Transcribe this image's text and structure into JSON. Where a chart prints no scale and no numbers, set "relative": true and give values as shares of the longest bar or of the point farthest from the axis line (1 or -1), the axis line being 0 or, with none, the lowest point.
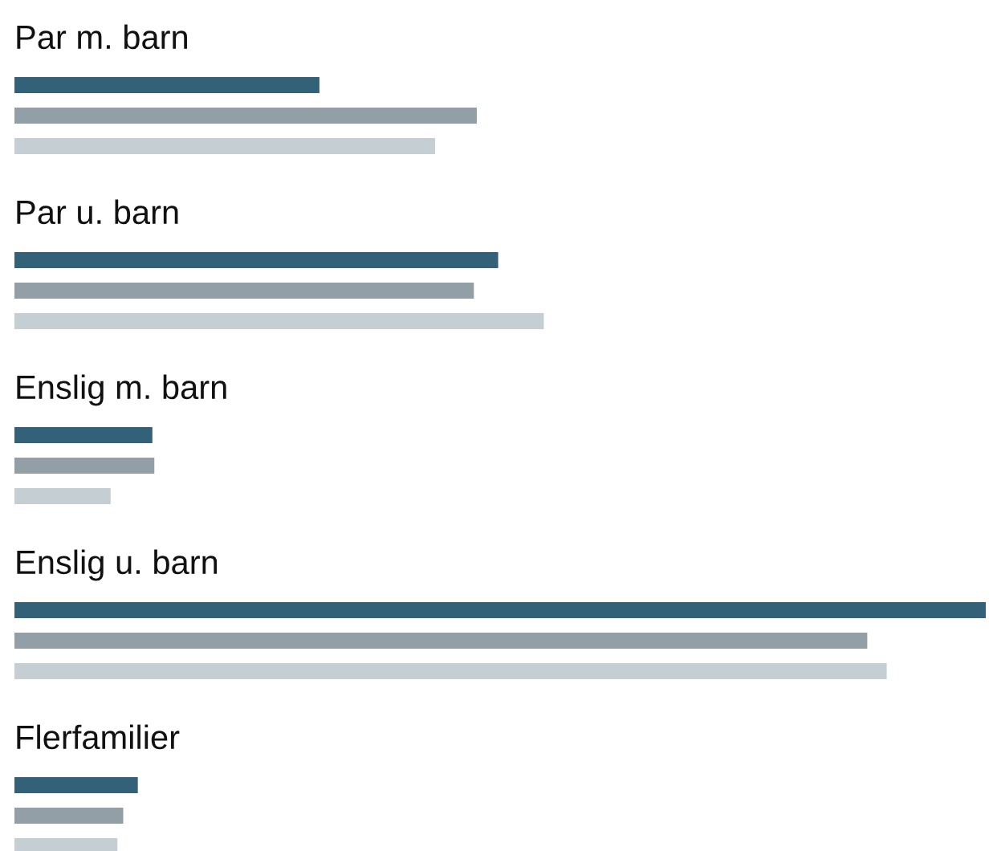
{
  "chart_data": {
    "type": "bar",
    "orientation": "horizontal",
    "relative": true,
    "legend": false,
    "categories": [
      "Par m. barn",
      "Par u. barn",
      "Enslig m. barn",
      "Enslig u. barn",
      "Flerfamilier"
    ],
    "series": [
      {
        "color": "#336178",
        "values": [
          0.314,
          0.498,
          0.142,
          1,
          0.127
        ]
      },
      {
        "color": "#939fa6",
        "values": [
          0.476,
          0.473,
          0.144,
          0.878,
          0.112
        ]
      },
      {
        "color": "#c5ced3",
        "values": [
          0.433,
          0.545,
          0.099,
          0.898,
          0.106
        ]
      }
    ]
  }
}
